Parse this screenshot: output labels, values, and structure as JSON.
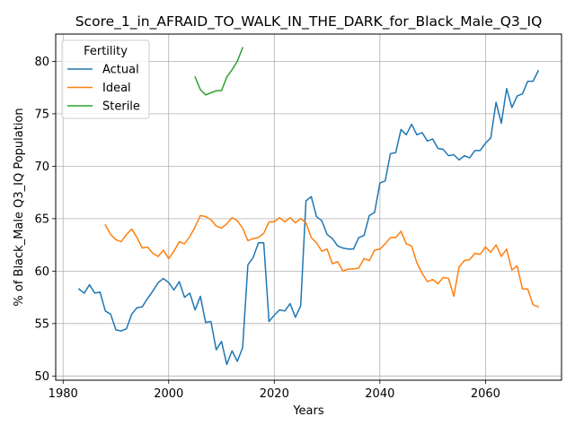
{
  "chart_data": {
    "type": "line",
    "title": "Score_1_in_AFRAID_TO_WALK_IN_THE_DARK_for_Black_Male_Q3_IQ",
    "xlabel": "Years",
    "ylabel": "% of Black_Male Q3_IQ Population",
    "xlim": [
      1978.6,
      2074.4
    ],
    "ylim": [
      49.6,
      82.6
    ],
    "xticks": [
      1980,
      2000,
      2020,
      2040,
      2060
    ],
    "yticks": [
      50,
      55,
      60,
      65,
      70,
      75,
      80
    ],
    "grid": true,
    "legend": {
      "title": "Fertility",
      "position": "top-left"
    },
    "series": [
      {
        "name": "Actual",
        "color": "#1f77b4",
        "x": [
          1983,
          1984,
          1985,
          1986,
          1987,
          1988,
          1989,
          1990,
          1991,
          1992,
          1993,
          1994,
          1995,
          1996,
          1997,
          1998,
          1999,
          2000,
          2001,
          2002,
          2003,
          2004,
          2005,
          2006,
          2007,
          2008,
          2009,
          2010,
          2011,
          2012,
          2013,
          2014,
          2015,
          2016,
          2017,
          2018,
          2019,
          2020,
          2021,
          2022,
          2023,
          2024,
          2025,
          2026,
          2027,
          2028,
          2029,
          2030,
          2031,
          2032,
          2033,
          2034,
          2035,
          2036,
          2037,
          2038,
          2039,
          2040,
          2041,
          2042,
          2043,
          2044,
          2045,
          2046,
          2047,
          2048,
          2049,
          2050,
          2051,
          2052,
          2053,
          2054,
          2055,
          2056,
          2057,
          2058,
          2059,
          2060,
          2061,
          2062,
          2063,
          2064,
          2065,
          2066,
          2067,
          2068,
          2069,
          2070
        ],
        "values": [
          58.3,
          57.9,
          58.7,
          57.9,
          58.0,
          56.2,
          55.9,
          54.4,
          54.3,
          54.5,
          55.9,
          56.5,
          56.6,
          57.4,
          58.1,
          58.9,
          59.3,
          58.9,
          58.2,
          59.0,
          57.5,
          57.9,
          56.3,
          57.6,
          55.1,
          55.2,
          52.5,
          53.3,
          51.1,
          52.4,
          51.4,
          52.7,
          60.6,
          61.3,
          62.7,
          62.7,
          55.2,
          55.8,
          56.3,
          56.2,
          56.9,
          55.6,
          56.7,
          66.7,
          67.1,
          65.2,
          64.8,
          63.5,
          63.1,
          62.4,
          62.2,
          62.1,
          62.1,
          63.2,
          63.4,
          65.3,
          65.6,
          68.4,
          68.6,
          71.2,
          71.3,
          73.5,
          73.0,
          74.0,
          73.0,
          73.2,
          72.4,
          72.6,
          71.7,
          71.6,
          71.0,
          71.1,
          70.6,
          71.0,
          70.8,
          71.5,
          71.5,
          72.2,
          72.7,
          76.1,
          74.1,
          77.4,
          75.6,
          76.7,
          76.9,
          78.1,
          78.1,
          79.1
        ]
      },
      {
        "name": "Ideal",
        "color": "#ff7f0e",
        "x": [
          1988,
          1989,
          1990,
          1991,
          1992,
          1993,
          1994,
          1995,
          1996,
          1997,
          1998,
          1999,
          2000,
          2001,
          2002,
          2003,
          2004,
          2005,
          2006,
          2007,
          2008,
          2009,
          2010,
          2011,
          2012,
          2013,
          2014,
          2015,
          2016,
          2017,
          2018,
          2019,
          2020,
          2021,
          2022,
          2023,
          2024,
          2025,
          2026,
          2027,
          2028,
          2029,
          2030,
          2031,
          2032,
          2033,
          2034,
          2035,
          2036,
          2037,
          2038,
          2039,
          2040,
          2041,
          2042,
          2043,
          2044,
          2045,
          2046,
          2047,
          2048,
          2049,
          2050,
          2051,
          2052,
          2053,
          2054,
          2055,
          2056,
          2057,
          2058,
          2059,
          2060,
          2061,
          2062,
          2063,
          2064,
          2065,
          2066,
          2067,
          2068,
          2069,
          2070
        ],
        "values": [
          64.4,
          63.5,
          63.0,
          62.8,
          63.5,
          64.0,
          63.2,
          62.2,
          62.3,
          61.7,
          61.4,
          62.0,
          61.2,
          61.9,
          62.8,
          62.6,
          63.3,
          64.2,
          65.3,
          65.2,
          64.9,
          64.3,
          64.1,
          64.5,
          65.1,
          64.8,
          64.1,
          62.9,
          63.1,
          63.2,
          63.6,
          64.7,
          64.7,
          65.1,
          64.7,
          65.1,
          64.6,
          65.0,
          64.6,
          63.2,
          62.7,
          61.9,
          62.1,
          60.7,
          60.9,
          60.0,
          60.2,
          60.2,
          60.3,
          61.2,
          61.0,
          62.0,
          62.1,
          62.6,
          63.2,
          63.2,
          63.8,
          62.6,
          62.4,
          60.8,
          59.8,
          59.0,
          59.2,
          58.8,
          59.4,
          59.3,
          57.6,
          60.4,
          61.0,
          61.1,
          61.7,
          61.6,
          62.3,
          61.8,
          62.5,
          61.4,
          62.1,
          60.1,
          60.5,
          58.3,
          58.3,
          56.8,
          56.6
        ]
      },
      {
        "name": "Sterile",
        "color": "#2ca02c",
        "x": [
          2005,
          2006,
          2007,
          2008,
          2009,
          2010,
          2011,
          2012,
          2013,
          2014
        ],
        "values": [
          78.5,
          77.3,
          76.8,
          77.0,
          77.2,
          77.2,
          78.5,
          79.2,
          80.0,
          81.3
        ]
      }
    ]
  }
}
